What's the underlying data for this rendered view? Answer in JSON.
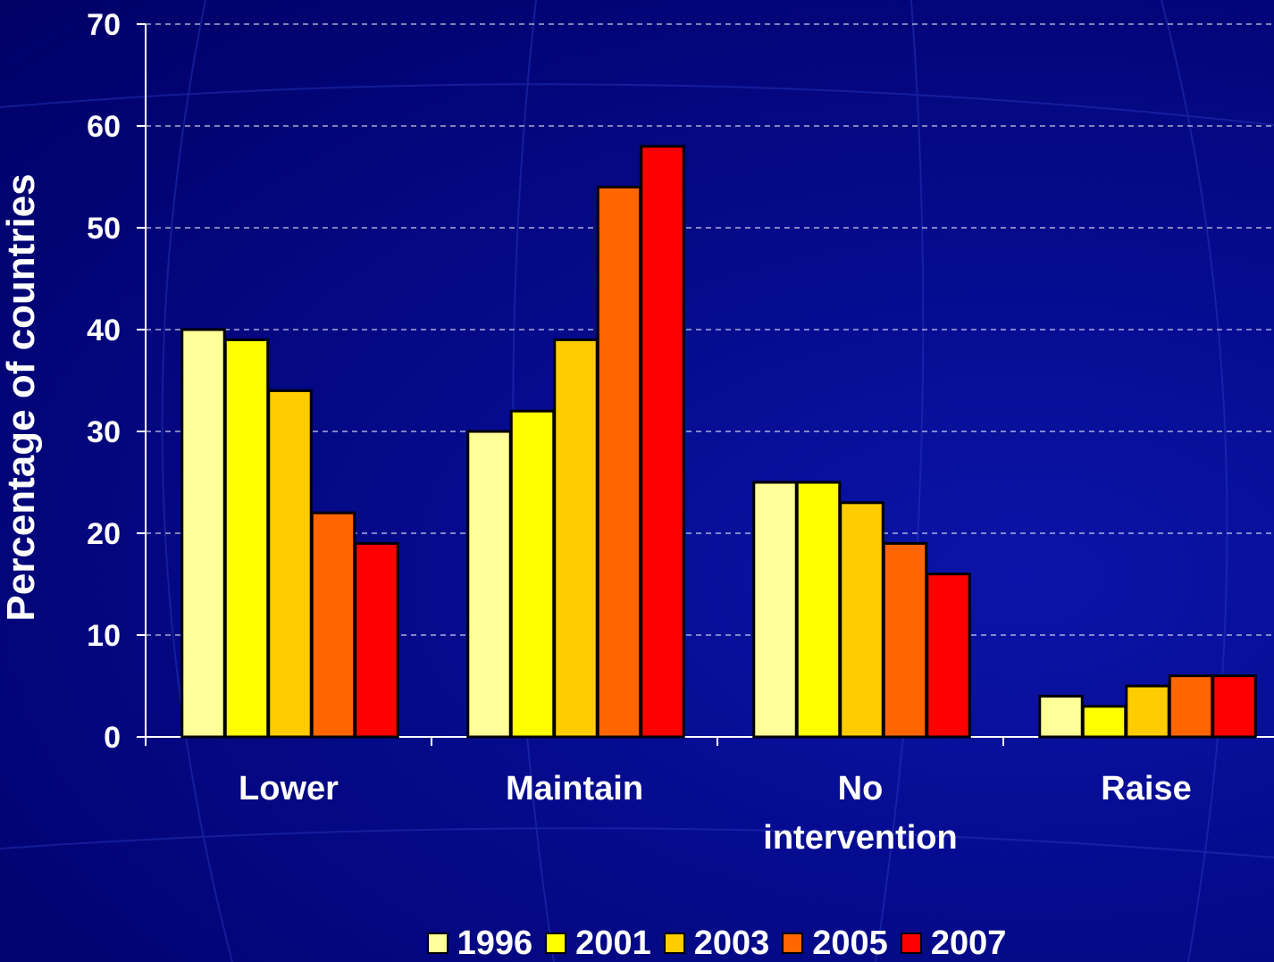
{
  "chart_data": {
    "type": "bar",
    "y_label": "Percentage of countries",
    "categories": [
      "Lower",
      "Maintain",
      "No intervention",
      "Raise"
    ],
    "series": [
      {
        "name": "1996",
        "color": "#ffff99",
        "values": [
          40,
          30,
          25,
          4
        ]
      },
      {
        "name": "2001",
        "color": "#ffff00",
        "values": [
          39,
          32,
          25,
          3
        ]
      },
      {
        "name": "2003",
        "color": "#ffcc00",
        "values": [
          34,
          39,
          23,
          5
        ]
      },
      {
        "name": "2005",
        "color": "#ff6600",
        "values": [
          22,
          54,
          19,
          6
        ]
      },
      {
        "name": "2007",
        "color": "#ff0000",
        "values": [
          19,
          58,
          16,
          6
        ]
      }
    ],
    "ylim": [
      0,
      70
    ],
    "yticks": [
      0,
      10,
      20,
      30,
      40,
      50,
      60,
      70
    ],
    "grid": true,
    "legend": "bottom"
  }
}
